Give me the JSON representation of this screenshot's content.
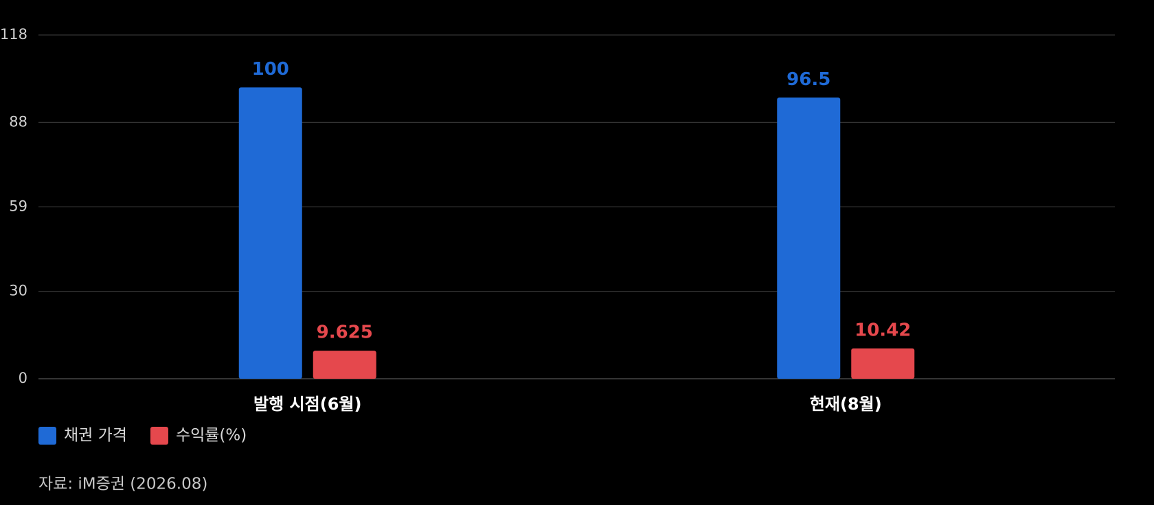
{
  "chart_data": {
    "type": "bar",
    "categories": [
      "발행 시점(6월)",
      "현재(8월)"
    ],
    "series": [
      {
        "name": "채권 가격",
        "color": "#1f6ad6",
        "values": [
          100,
          96.5
        ]
      },
      {
        "name": "수익률(%)",
        "color": "#e5484d",
        "values": [
          9.625,
          10.42
        ]
      }
    ],
    "ylim": [
      0,
      118
    ],
    "yticks": [
      0,
      30,
      59,
      88,
      118
    ],
    "grid": true,
    "legend": "bottom-left",
    "source": "자료: iM증권 (2026.08)"
  }
}
